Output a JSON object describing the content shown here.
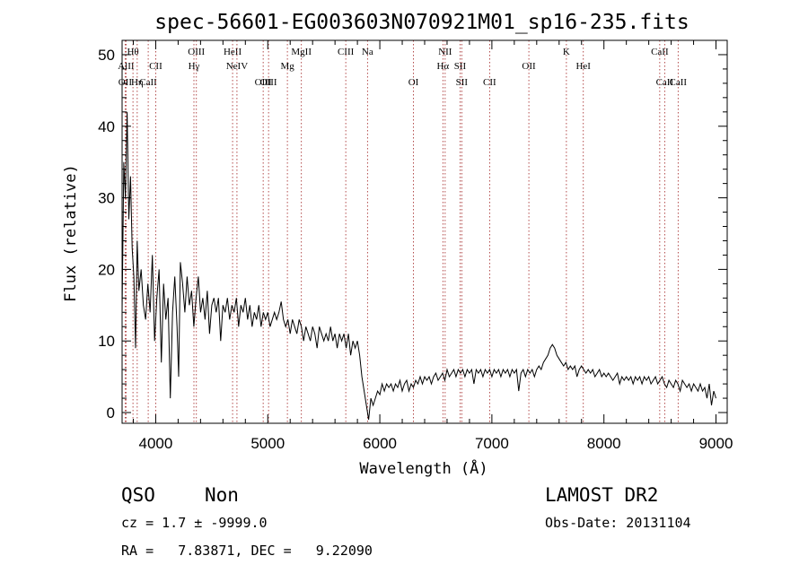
{
  "chart_data": {
    "type": "line",
    "title": "spec-56601-EG003603N070921M01_sp16-235.fits",
    "xlabel": "Wavelength (Å)",
    "ylabel": "Flux (relative)",
    "xlim": [
      3700,
      9100
    ],
    "ylim": [
      -1.5,
      52
    ],
    "xticks": [
      4000,
      5000,
      6000,
      7000,
      8000,
      9000
    ],
    "yticks": [
      0,
      10,
      20,
      30,
      40,
      50
    ],
    "grid": false,
    "spectrum_points": [
      [
        3700,
        14
      ],
      [
        3715,
        35
      ],
      [
        3730,
        30
      ],
      [
        3745,
        42
      ],
      [
        3760,
        27
      ],
      [
        3775,
        33
      ],
      [
        3790,
        23
      ],
      [
        3805,
        19
      ],
      [
        3820,
        9
      ],
      [
        3835,
        24
      ],
      [
        3850,
        17
      ],
      [
        3870,
        20
      ],
      [
        3890,
        15
      ],
      [
        3910,
        13
      ],
      [
        3930,
        18
      ],
      [
        3950,
        14
      ],
      [
        3970,
        22
      ],
      [
        3990,
        10
      ],
      [
        4010,
        16
      ],
      [
        4030,
        20
      ],
      [
        4050,
        7
      ],
      [
        4070,
        18
      ],
      [
        4090,
        13
      ],
      [
        4110,
        16
      ],
      [
        4130,
        2
      ],
      [
        4150,
        14
      ],
      [
        4170,
        19
      ],
      [
        4190,
        12
      ],
      [
        4205,
        5
      ],
      [
        4220,
        21
      ],
      [
        4240,
        18
      ],
      [
        4260,
        14
      ],
      [
        4280,
        19
      ],
      [
        4300,
        15
      ],
      [
        4320,
        17
      ],
      [
        4340,
        12
      ],
      [
        4360,
        16
      ],
      [
        4380,
        19
      ],
      [
        4400,
        14
      ],
      [
        4420,
        16
      ],
      [
        4440,
        13
      ],
      [
        4460,
        17
      ],
      [
        4480,
        11
      ],
      [
        4500,
        15
      ],
      [
        4520,
        16
      ],
      [
        4540,
        14
      ],
      [
        4560,
        16
      ],
      [
        4580,
        10
      ],
      [
        4600,
        15
      ],
      [
        4620,
        14
      ],
      [
        4640,
        16
      ],
      [
        4660,
        13
      ],
      [
        4680,
        15
      ],
      [
        4700,
        14
      ],
      [
        4720,
        16
      ],
      [
        4740,
        12
      ],
      [
        4760,
        15
      ],
      [
        4780,
        14
      ],
      [
        4800,
        16
      ],
      [
        4820,
        13
      ],
      [
        4840,
        15
      ],
      [
        4860,
        12
      ],
      [
        4880,
        14
      ],
      [
        4900,
        13
      ],
      [
        4920,
        15
      ],
      [
        4940,
        12
      ],
      [
        4960,
        14
      ],
      [
        4980,
        13
      ],
      [
        5000,
        14
      ],
      [
        5020,
        12
      ],
      [
        5040,
        13
      ],
      [
        5060,
        14
      ],
      [
        5080,
        13
      ],
      [
        5100,
        14
      ],
      [
        5120,
        15.5
      ],
      [
        5140,
        13
      ],
      [
        5160,
        12
      ],
      [
        5180,
        13
      ],
      [
        5200,
        11
      ],
      [
        5220,
        13
      ],
      [
        5240,
        12
      ],
      [
        5260,
        11
      ],
      [
        5280,
        13
      ],
      [
        5300,
        12
      ],
      [
        5320,
        10
      ],
      [
        5340,
        12
      ],
      [
        5360,
        11
      ],
      [
        5380,
        10
      ],
      [
        5400,
        12
      ],
      [
        5420,
        11
      ],
      [
        5440,
        9
      ],
      [
        5460,
        12
      ],
      [
        5480,
        11
      ],
      [
        5500,
        10
      ],
      [
        5520,
        11
      ],
      [
        5540,
        10
      ],
      [
        5560,
        12
      ],
      [
        5580,
        10
      ],
      [
        5600,
        11
      ],
      [
        5620,
        9
      ],
      [
        5640,
        11
      ],
      [
        5660,
        10
      ],
      [
        5680,
        11
      ],
      [
        5700,
        9
      ],
      [
        5720,
        11
      ],
      [
        5740,
        8
      ],
      [
        5760,
        10
      ],
      [
        5780,
        9
      ],
      [
        5800,
        10
      ],
      [
        5820,
        8
      ],
      [
        5840,
        5
      ],
      [
        5860,
        3
      ],
      [
        5880,
        1
      ],
      [
        5900,
        -1
      ],
      [
        5920,
        2
      ],
      [
        5940,
        1
      ],
      [
        5960,
        2
      ],
      [
        5980,
        3
      ],
      [
        6000,
        2.5
      ],
      [
        6020,
        4
      ],
      [
        6040,
        3
      ],
      [
        6060,
        4
      ],
      [
        6080,
        3.5
      ],
      [
        6100,
        4
      ],
      [
        6120,
        3
      ],
      [
        6140,
        4
      ],
      [
        6160,
        3.5
      ],
      [
        6180,
        4.5
      ],
      [
        6200,
        3
      ],
      [
        6220,
        4
      ],
      [
        6240,
        4.5
      ],
      [
        6260,
        3
      ],
      [
        6280,
        4
      ],
      [
        6300,
        3.5
      ],
      [
        6320,
        4.5
      ],
      [
        6340,
        4
      ],
      [
        6360,
        5
      ],
      [
        6380,
        4
      ],
      [
        6400,
        5
      ],
      [
        6420,
        4.5
      ],
      [
        6440,
        5
      ],
      [
        6460,
        4
      ],
      [
        6480,
        5
      ],
      [
        6500,
        5.5
      ],
      [
        6520,
        4.5
      ],
      [
        6540,
        5
      ],
      [
        6560,
        5.5
      ],
      [
        6580,
        4.5
      ],
      [
        6600,
        6
      ],
      [
        6620,
        5
      ],
      [
        6640,
        5.5
      ],
      [
        6660,
        6
      ],
      [
        6680,
        5
      ],
      [
        6700,
        6
      ],
      [
        6720,
        5.5
      ],
      [
        6740,
        6
      ],
      [
        6760,
        5
      ],
      [
        6780,
        6
      ],
      [
        6800,
        5.5
      ],
      [
        6820,
        6
      ],
      [
        6840,
        4
      ],
      [
        6860,
        6
      ],
      [
        6880,
        5.5
      ],
      [
        6900,
        6
      ],
      [
        6920,
        5
      ],
      [
        6940,
        6
      ],
      [
        6960,
        5.5
      ],
      [
        6980,
        6
      ],
      [
        7000,
        5
      ],
      [
        7020,
        6
      ],
      [
        7040,
        5.5
      ],
      [
        7060,
        6
      ],
      [
        7080,
        5
      ],
      [
        7100,
        6
      ],
      [
        7120,
        5.5
      ],
      [
        7140,
        6
      ],
      [
        7160,
        5
      ],
      [
        7180,
        6
      ],
      [
        7200,
        5.5
      ],
      [
        7220,
        6
      ],
      [
        7240,
        3
      ],
      [
        7260,
        5.5
      ],
      [
        7280,
        6
      ],
      [
        7300,
        5
      ],
      [
        7320,
        6
      ],
      [
        7340,
        5.5
      ],
      [
        7360,
        6
      ],
      [
        7380,
        5
      ],
      [
        7400,
        6
      ],
      [
        7420,
        6.5
      ],
      [
        7440,
        6
      ],
      [
        7460,
        7
      ],
      [
        7480,
        7.5
      ],
      [
        7500,
        8
      ],
      [
        7520,
        9
      ],
      [
        7540,
        9.5
      ],
      [
        7560,
        9
      ],
      [
        7580,
        8
      ],
      [
        7600,
        7.5
      ],
      [
        7620,
        7
      ],
      [
        7640,
        6.5
      ],
      [
        7660,
        7
      ],
      [
        7680,
        6
      ],
      [
        7700,
        6.5
      ],
      [
        7720,
        6
      ],
      [
        7740,
        6.5
      ],
      [
        7760,
        5
      ],
      [
        7780,
        6
      ],
      [
        7800,
        6.5
      ],
      [
        7820,
        6
      ],
      [
        7840,
        5.5
      ],
      [
        7860,
        6
      ],
      [
        7880,
        5.5
      ],
      [
        7900,
        6
      ],
      [
        7920,
        5
      ],
      [
        7940,
        5.5
      ],
      [
        7960,
        6
      ],
      [
        7980,
        5
      ],
      [
        8000,
        5.5
      ],
      [
        8020,
        5
      ],
      [
        8040,
        5.5
      ],
      [
        8060,
        5
      ],
      [
        8080,
        4.5
      ],
      [
        8100,
        5
      ],
      [
        8120,
        5.5
      ],
      [
        8140,
        4
      ],
      [
        8160,
        5
      ],
      [
        8180,
        4.5
      ],
      [
        8200,
        5
      ],
      [
        8220,
        4.5
      ],
      [
        8240,
        5
      ],
      [
        8260,
        4
      ],
      [
        8280,
        5
      ],
      [
        8300,
        4.5
      ],
      [
        8320,
        5
      ],
      [
        8340,
        4
      ],
      [
        8360,
        5
      ],
      [
        8380,
        4.5
      ],
      [
        8400,
        5
      ],
      [
        8420,
        4
      ],
      [
        8440,
        4.5
      ],
      [
        8460,
        5
      ],
      [
        8480,
        4
      ],
      [
        8500,
        4.5
      ],
      [
        8520,
        5
      ],
      [
        8540,
        4
      ],
      [
        8560,
        3.5
      ],
      [
        8580,
        4.5
      ],
      [
        8600,
        4
      ],
      [
        8620,
        3.5
      ],
      [
        8640,
        4.5
      ],
      [
        8660,
        4
      ],
      [
        8680,
        3
      ],
      [
        8700,
        4.5
      ],
      [
        8720,
        4
      ],
      [
        8740,
        3.5
      ],
      [
        8760,
        4
      ],
      [
        8780,
        3
      ],
      [
        8800,
        4
      ],
      [
        8820,
        3.5
      ],
      [
        8840,
        3
      ],
      [
        8860,
        4
      ],
      [
        8880,
        3
      ],
      [
        8900,
        3.5
      ],
      [
        8920,
        2
      ],
      [
        8940,
        4
      ],
      [
        8960,
        1
      ],
      [
        8980,
        3
      ],
      [
        9000,
        2
      ]
    ],
    "spectral_lines": [
      {
        "label": "OII",
        "wavelength": 3727,
        "row": 3
      },
      {
        "label": "AlII",
        "wavelength": 3735,
        "row": 2
      },
      {
        "label": "Hθ",
        "wavelength": 3797,
        "row": 1
      },
      {
        "label": "Hη",
        "wavelength": 3835,
        "row": 3
      },
      {
        "label": "CaII",
        "wavelength": 3933,
        "row": 3
      },
      {
        "label": "CII",
        "wavelength": 4000,
        "row": 2
      },
      {
        "label": "Hγ",
        "wavelength": 4341,
        "row": 2
      },
      {
        "label": "OIII",
        "wavelength": 4363,
        "row": 1
      },
      {
        "label": "HeII",
        "wavelength": 4686,
        "row": 1
      },
      {
        "label": "NeIV",
        "wavelength": 4725,
        "row": 2
      },
      {
        "label": "OIII",
        "wavelength": 4959,
        "row": 3
      },
      {
        "label": "OIII",
        "wavelength": 5007,
        "row": 3
      },
      {
        "label": "Mg",
        "wavelength": 5175,
        "row": 2
      },
      {
        "label": "MgII",
        "wavelength": 5300,
        "row": 1
      },
      {
        "label": "CIII",
        "wavelength": 5696,
        "row": 1
      },
      {
        "label": "Na",
        "wavelength": 5890,
        "row": 1
      },
      {
        "label": "OI",
        "wavelength": 6300,
        "row": 3
      },
      {
        "label": "NII",
        "wavelength": 6583,
        "row": 1
      },
      {
        "label": "Hα",
        "wavelength": 6563,
        "row": 2
      },
      {
        "label": "SII",
        "wavelength": 6716,
        "row": 2
      },
      {
        "label": "SII",
        "wavelength": 6731,
        "row": 3
      },
      {
        "label": "CII",
        "wavelength": 6980,
        "row": 3
      },
      {
        "label": "OII",
        "wavelength": 7330,
        "row": 2
      },
      {
        "label": "K",
        "wavelength": 7665,
        "row": 1
      },
      {
        "label": "HeI",
        "wavelength": 7816,
        "row": 2
      },
      {
        "label": "CaII",
        "wavelength": 8498,
        "row": 1
      },
      {
        "label": "CaII",
        "wavelength": 8542,
        "row": 3
      },
      {
        "label": "CaII",
        "wavelength": 8662,
        "row": 3
      }
    ]
  },
  "footer": {
    "class_label": "QSO",
    "subclass_label": "Non",
    "cz_text": "cz = 1.7 ± -9999.0",
    "radec_text": "RA =   7.83871, DEC =   9.22090",
    "survey": "LAMOST DR2",
    "obs_date": "Obs-Date: 20131104"
  },
  "colors": {
    "axes": "#000000",
    "spectrum": "#000000",
    "marker": "#a02020"
  }
}
